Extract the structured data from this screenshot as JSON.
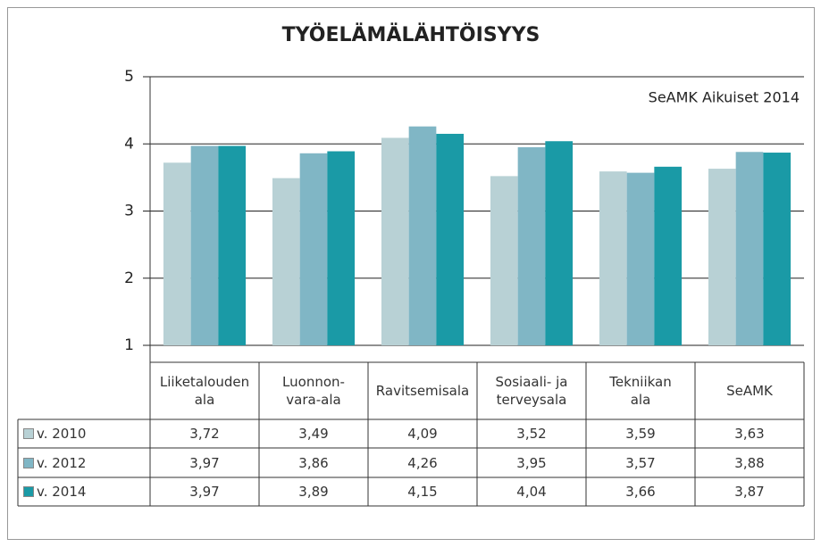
{
  "chart_data": {
    "type": "bar",
    "title": "TYÖELÄMÄLÄHTÖISYYS",
    "annotation": "SeAMK Aikuiset 2014",
    "categories": [
      "Liiketalouden\nala",
      "Luonnon-\nvara-ala",
      "Ravitsemisala",
      "Sosiaali- ja\nterveysala",
      "Tekniikan\nala",
      "SeAMK"
    ],
    "series": [
      {
        "name": "v. 2010",
        "color": "#b8d1d5",
        "values": [
          3.72,
          3.49,
          4.09,
          3.52,
          3.59,
          3.63
        ],
        "value_labels": [
          "3,72",
          "3,49",
          "4,09",
          "3,52",
          "3,59",
          "3,63"
        ]
      },
      {
        "name": "v. 2012",
        "color": "#80b6c5",
        "values": [
          3.97,
          3.86,
          4.26,
          3.95,
          3.57,
          3.88
        ],
        "value_labels": [
          "3,97",
          "3,86",
          "4,26",
          "3,95",
          "3,57",
          "3,88"
        ]
      },
      {
        "name": "v. 2014",
        "color": "#1a9aa6",
        "values": [
          3.97,
          3.89,
          4.15,
          4.04,
          3.66,
          3.87
        ],
        "value_labels": [
          "3,97",
          "3,89",
          "4,15",
          "4,04",
          "3,66",
          "3,87"
        ]
      }
    ],
    "ylim": [
      1,
      5
    ],
    "yticks": [
      1,
      2,
      3,
      4,
      5
    ],
    "grid": true
  }
}
